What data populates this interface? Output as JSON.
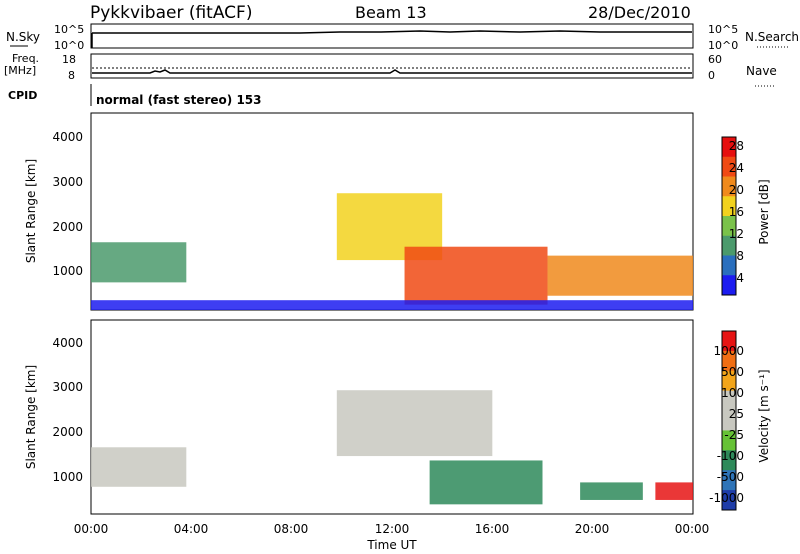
{
  "header": {
    "title": "Pykkvibaer (fitACF)",
    "beam": "Beam 13",
    "date": "28/Dec/2010"
  },
  "aux_panels": {
    "nsky_label": "N.Sky",
    "nsky_ticks": [
      "10^5",
      "10^0"
    ],
    "nsearch_label": "N.Search",
    "nsearch_ticks": [
      "10^5",
      "10^0"
    ],
    "freq_label_1": "Freq.",
    "freq_label_2": "[MHz]",
    "freq_ticks": [
      "18",
      "8"
    ],
    "nave_label": "Nave",
    "nave_ticks": [
      "60",
      "0"
    ],
    "cpid_label": "CPID",
    "cpid_value": "normal (fast stereo) 153"
  },
  "chart_data": [
    {
      "type": "heatmap",
      "name": "Power",
      "ylabel": "Slant Range [km]",
      "yticks": [
        "4000",
        "3000",
        "2000",
        "1000"
      ],
      "ylim": [
        180,
        4600
      ],
      "colorbar_label": "Power [dB]",
      "colorbar_ticks": [
        "28",
        "24",
        "20",
        "16",
        "12",
        "8",
        "4"
      ],
      "colors": [
        "#1c1cf0",
        "#2a6fbe",
        "#4b9a6c",
        "#7ac24a",
        "#f2d21e",
        "#f08a1c",
        "#f04a14",
        "#e60f0f"
      ],
      "x_hours": [
        0,
        24
      ],
      "regions": [
        {
          "t0": 0.0,
          "t1": 3.8,
          "r0": 800,
          "r1": 1700,
          "level": 2
        },
        {
          "t0": 9.8,
          "t1": 14.0,
          "r0": 1300,
          "r1": 2800,
          "level": 4
        },
        {
          "t0": 12.5,
          "t1": 18.2,
          "r0": 300,
          "r1": 1600,
          "level": 6
        },
        {
          "t0": 18.2,
          "t1": 24.0,
          "r0": 500,
          "r1": 1400,
          "level": 5
        },
        {
          "t0": 0.0,
          "t1": 24.0,
          "r0": 180,
          "r1": 400,
          "level": 0
        }
      ]
    },
    {
      "type": "heatmap",
      "name": "Velocity",
      "ylabel": "Slant Range [km]",
      "yticks": [
        "4000",
        "3000",
        "2000",
        "1000"
      ],
      "ylim": [
        180,
        4600
      ],
      "colorbar_label": "Velocity [m s⁻¹]",
      "colorbar_ticks": [
        "1000",
        "500",
        "100",
        "25",
        "-25",
        "-100",
        "-500",
        "-1000"
      ],
      "colors": [
        "#1e3ca8",
        "#2e74b8",
        "#2e8a5a",
        "#66c236",
        "#c8c8c0",
        "#c8c8c0",
        "#f2a51a",
        "#f06e14",
        "#e61414"
      ],
      "x_hours": [
        0,
        24
      ],
      "regions": [
        {
          "t0": 0.0,
          "t1": 3.8,
          "r0": 800,
          "r1": 1700,
          "level": 4
        },
        {
          "t0": 9.8,
          "t1": 16.0,
          "r0": 1500,
          "r1": 3000,
          "level": 4
        },
        {
          "t0": 13.5,
          "t1": 18.0,
          "r0": 400,
          "r1": 1400,
          "level": 2
        },
        {
          "t0": 19.5,
          "t1": 22.0,
          "r0": 500,
          "r1": 900,
          "level": 2
        },
        {
          "t0": 22.5,
          "t1": 24.0,
          "r0": 500,
          "r1": 900,
          "level": 8
        }
      ]
    }
  ],
  "xaxis": {
    "ticks": [
      "00:00",
      "04:00",
      "08:00",
      "12:00",
      "16:00",
      "20:00",
      "00:00"
    ],
    "label": "Time UT"
  }
}
